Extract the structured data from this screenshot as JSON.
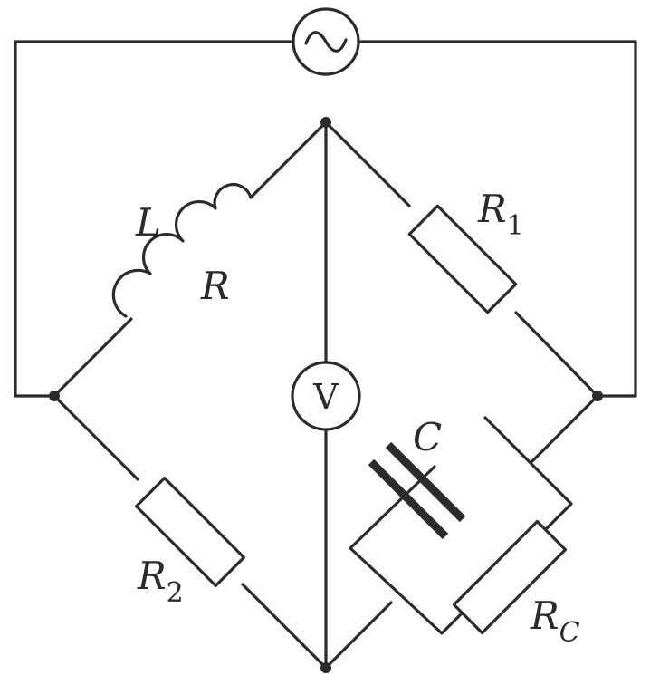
{
  "colors": {
    "wire": "#2b2b2b",
    "background": "#ffffff"
  },
  "labels": {
    "inductor": "L",
    "coil_resistance": "R",
    "resistor_1": {
      "letter": "R",
      "subscript": "1"
    },
    "resistor_2": {
      "letter": "R",
      "subscript": "2"
    },
    "capacitor": "C",
    "capacitor_resistance": {
      "letter": "R",
      "subscript": "C"
    },
    "voltmeter": "V"
  },
  "icons": {
    "source": "ac-source-icon",
    "meter": "voltmeter-icon"
  }
}
